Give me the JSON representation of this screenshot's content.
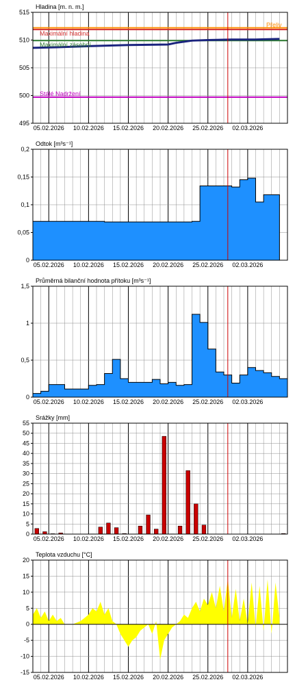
{
  "colors": {
    "grid": "#000000",
    "minor_grid": "#8c8c8c",
    "today_line": "#cc0000",
    "bar_blue": "#1e90ff",
    "bar_red": "#c80000",
    "temp_fill": "#ffff00",
    "level_line": "#1a237e",
    "line_overflow": "#ff8c00",
    "line_max_level": "#d32f2f",
    "line_max_storage": "#2e7d32",
    "line_permanent": "#c000c0"
  },
  "x_dates": {
    "start": "2026-02-03",
    "end": "2026-03-07",
    "today": "2026-02-27 12:00",
    "tick_labels": [
      "05.02.2026",
      "10.02.2026",
      "15.02.2026",
      "20.02.2026",
      "25.02.2026",
      "02.03.2026"
    ],
    "tick_dates": [
      "2026-02-05",
      "2026-02-10",
      "2026-02-15",
      "2026-02-20",
      "2026-02-25",
      "2026-03-02"
    ]
  },
  "chart_data": [
    {
      "type": "line",
      "title": "Hladina [m. n. m.]",
      "ylim": [
        495,
        515
      ],
      "yticks": [
        495,
        500,
        505,
        510,
        515
      ],
      "reference_lines": [
        {
          "name": "Přeliv",
          "value": 512.2,
          "color": "#ff8c00"
        },
        {
          "name": "Maximální hladina",
          "value": 511.9,
          "color": "#d32f2f"
        },
        {
          "name": "Maximální zásobní",
          "value": 509.9,
          "color": "#2e7d32"
        },
        {
          "name": "Stálé Nadržení",
          "value": 499.7,
          "color": "#c000c0"
        }
      ],
      "series": [
        {
          "x": [
            "2026-02-03",
            "2026-02-06",
            "2026-02-10",
            "2026-02-15",
            "2026-02-20",
            "2026-02-21",
            "2026-02-23",
            "2026-02-25",
            "2026-02-28",
            "2026-03-03",
            "2026-03-06"
          ],
          "values": [
            508.6,
            508.7,
            508.9,
            509.1,
            509.2,
            509.5,
            509.9,
            510.0,
            510.1,
            510.1,
            510.2
          ]
        }
      ]
    },
    {
      "type": "area",
      "title": "Odtok [m³s⁻¹]",
      "ylim": [
        0,
        0.2
      ],
      "yticks": [
        0,
        0.05,
        0.1,
        0.15,
        0.2
      ],
      "ytick_labels": [
        "0",
        "0,05",
        "0,1",
        "0,15",
        "0,2"
      ],
      "series": [
        {
          "x": [
            "2026-02-03",
            "2026-02-12",
            "2026-02-12",
            "2026-02-23",
            "2026-02-23",
            "2026-02-24",
            "2026-02-24",
            "2026-02-28",
            "2026-02-28",
            "2026-03-01",
            "2026-03-01",
            "2026-03-02",
            "2026-03-02",
            "2026-03-03",
            "2026-03-03",
            "2026-03-04",
            "2026-03-04",
            "2026-03-05",
            "2026-03-05",
            "2026-03-06"
          ],
          "values": [
            0.07,
            0.07,
            0.069,
            0.069,
            0.07,
            0.07,
            0.134,
            0.134,
            0.132,
            0.132,
            0.145,
            0.145,
            0.148,
            0.148,
            0.105,
            0.105,
            0.118,
            0.118,
            0.118,
            0.118
          ]
        }
      ]
    },
    {
      "type": "area",
      "title": "Průměrná bilanční hodnota přítoku [m³s⁻¹]",
      "ylim": [
        0,
        1.5
      ],
      "yticks": [
        0,
        0.5,
        1,
        1.5
      ],
      "ytick_labels": [
        "0",
        "0,5",
        "1",
        "1,5"
      ],
      "series": [
        {
          "x": [
            "2026-02-03",
            "2026-02-04",
            "2026-02-05",
            "2026-02-06",
            "2026-02-07",
            "2026-02-08",
            "2026-02-09",
            "2026-02-10",
            "2026-02-11",
            "2026-02-12",
            "2026-02-13",
            "2026-02-14",
            "2026-02-15",
            "2026-02-16",
            "2026-02-17",
            "2026-02-18",
            "2026-02-19",
            "2026-02-20",
            "2026-02-21",
            "2026-02-22",
            "2026-02-23",
            "2026-02-24",
            "2026-02-25",
            "2026-02-26",
            "2026-02-27",
            "2026-02-28",
            "2026-03-01",
            "2026-03-02",
            "2026-03-03",
            "2026-03-04",
            "2026-03-05",
            "2026-03-06"
          ],
          "values": [
            0.05,
            0.08,
            0.17,
            0.17,
            0.11,
            0.11,
            0.11,
            0.16,
            0.17,
            0.32,
            0.51,
            0.25,
            0.2,
            0.2,
            0.2,
            0.24,
            0.18,
            0.2,
            0.16,
            0.17,
            1.12,
            1.01,
            0.65,
            0.34,
            0.3,
            0.19,
            0.3,
            0.4,
            0.36,
            0.33,
            0.28,
            0.25
          ]
        }
      ]
    },
    {
      "type": "bar",
      "title": "Srážky [mm]",
      "ylim": [
        0,
        55
      ],
      "yticks": [
        0,
        5,
        10,
        15,
        20,
        25,
        30,
        35,
        40,
        45,
        50,
        55
      ],
      "series": [
        {
          "x": [
            "2026-02-03",
            "2026-02-04",
            "2026-02-05",
            "2026-02-06",
            "2026-02-10",
            "2026-02-11",
            "2026-02-12",
            "2026-02-13",
            "2026-02-14",
            "2026-02-16",
            "2026-02-17",
            "2026-02-18",
            "2026-02-19",
            "2026-02-20",
            "2026-02-21",
            "2026-02-22",
            "2026-02-23",
            "2026-02-24",
            "2026-03-06"
          ],
          "values": [
            2.8,
            1.2,
            0.2,
            0.6,
            0.1,
            3.5,
            5.5,
            3.2,
            0.3,
            4.0,
            9.5,
            2.5,
            48.5,
            0.1,
            4.0,
            31.5,
            15.0,
            4.5,
            0.3
          ]
        }
      ]
    },
    {
      "type": "area",
      "title": "Teplota vzduchu [°C]",
      "ylim": [
        -15,
        20
      ],
      "yticks": [
        -15,
        -10,
        -5,
        0,
        5,
        10,
        15,
        20
      ],
      "series": [
        {
          "x": [
            "2026-02-03",
            "2026-02-03 12:00",
            "2026-02-04",
            "2026-02-04 12:00",
            "2026-02-05",
            "2026-02-05 12:00",
            "2026-02-06",
            "2026-02-06 12:00",
            "2026-02-07",
            "2026-02-08",
            "2026-02-09",
            "2026-02-09 12:00",
            "2026-02-10",
            "2026-02-10 12:00",
            "2026-02-11",
            "2026-02-11 12:00",
            "2026-02-12",
            "2026-02-12 12:00",
            "2026-02-13",
            "2026-02-13 12:00",
            "2026-02-14",
            "2026-02-14 12:00",
            "2026-02-15",
            "2026-02-15 12:00",
            "2026-02-16",
            "2026-02-16 12:00",
            "2026-02-17",
            "2026-02-17 12:00",
            "2026-02-18",
            "2026-02-18 12:00",
            "2026-02-19",
            "2026-02-19 12:00",
            "2026-02-20",
            "2026-02-20 12:00",
            "2026-02-21",
            "2026-02-21 12:00",
            "2026-02-22",
            "2026-02-22 12:00",
            "2026-02-23",
            "2026-02-23 12:00",
            "2026-02-24",
            "2026-02-24 12:00",
            "2026-02-25",
            "2026-02-25 12:00",
            "2026-02-26",
            "2026-02-26 12:00",
            "2026-02-27",
            "2026-02-27 12:00",
            "2026-02-28",
            "2026-02-28 12:00",
            "2026-03-01",
            "2026-03-01 12:00",
            "2026-03-02",
            "2026-03-02 12:00",
            "2026-03-03",
            "2026-03-03 12:00",
            "2026-03-04",
            "2026-03-04 12:00",
            "2026-03-05",
            "2026-03-05 12:00",
            "2026-03-06"
          ],
          "values": [
            3,
            5,
            2,
            4,
            1,
            3,
            1,
            2,
            0,
            0,
            1,
            2,
            3,
            5,
            4,
            7,
            3,
            5,
            1,
            0,
            -3,
            -5,
            -7,
            -5,
            -4,
            -2,
            -1,
            0,
            -3,
            1,
            -11,
            -5,
            -3,
            -1,
            0,
            1,
            3,
            2,
            5,
            7,
            4,
            8,
            6,
            10,
            5,
            12,
            4,
            14,
            2,
            11,
            1,
            8,
            0,
            13,
            -1,
            12,
            -2,
            14,
            -3,
            13,
            2
          ]
        }
      ]
    }
  ]
}
